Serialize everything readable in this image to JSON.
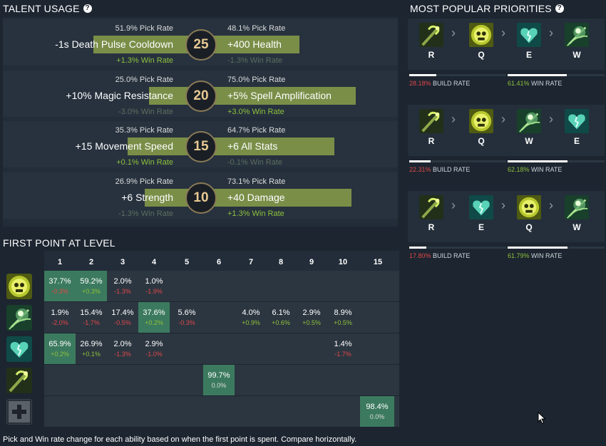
{
  "talent_usage": {
    "title": "TALENT USAGE",
    "help": "?",
    "rows": [
      {
        "level": "25",
        "left": {
          "name": "-1s Death Pulse Cooldown",
          "pick": "51.9% Pick Rate",
          "win": "+1.3% Win Rate",
          "win_sign": "pos",
          "pick_value": 51.9
        },
        "right": {
          "name": "+400 Health",
          "pick": "48.1% Pick Rate",
          "win": "-1.3% Win Rate",
          "win_sign": "neg",
          "pick_value": 48.1
        }
      },
      {
        "level": "20",
        "left": {
          "name": "+10% Magic Resistance",
          "pick": "25.0% Pick Rate",
          "win": "-3.0% Win Rate",
          "win_sign": "neg",
          "pick_value": 25.0
        },
        "right": {
          "name": "+5% Spell Amplification",
          "pick": "75.0% Pick Rate",
          "win": "+3.0% Win Rate",
          "win_sign": "pos",
          "pick_value": 75.0
        }
      },
      {
        "level": "15",
        "left": {
          "name": "+15 Movement Speed",
          "pick": "35.3% Pick Rate",
          "win": "+0.1% Win Rate",
          "win_sign": "pos",
          "pick_value": 35.3
        },
        "right": {
          "name": "+6 All Stats",
          "pick": "64.7% Pick Rate",
          "win": "-0.1% Win Rate",
          "win_sign": "neg",
          "pick_value": 64.7
        }
      },
      {
        "level": "10",
        "left": {
          "name": "+6 Strength",
          "pick": "26.9% Pick Rate",
          "win": "-1.3% Win Rate",
          "win_sign": "neg",
          "pick_value": 26.9
        },
        "right": {
          "name": "+40 Damage",
          "pick": "73.1% Pick Rate",
          "win": "+1.3% Win Rate",
          "win_sign": "pos",
          "pick_value": 73.1
        }
      }
    ]
  },
  "first_point": {
    "title": "FIRST POINT AT LEVEL",
    "levels": [
      "1",
      "2",
      "3",
      "4",
      "5",
      "6",
      "7",
      "8",
      "9",
      "10",
      "15"
    ],
    "abilities": [
      {
        "icon": "q-ability-icon",
        "cells": [
          {
            "pct": "37.7%",
            "chg": "-0.3%",
            "sign": "neg",
            "hl": true
          },
          {
            "pct": "59.2%",
            "chg": "+0.3%",
            "sign": "pos",
            "hl": true
          },
          {
            "pct": "2.0%",
            "chg": "-1.3%",
            "sign": "neg",
            "hl": false
          },
          {
            "pct": "1.0%",
            "chg": "-1.9%",
            "sign": "neg",
            "hl": false
          },
          null,
          null,
          null,
          null,
          null,
          null,
          null
        ]
      },
      {
        "icon": "w-ability-icon",
        "cells": [
          {
            "pct": "1.9%",
            "chg": "-2.0%",
            "sign": "neg",
            "hl": false
          },
          {
            "pct": "15.4%",
            "chg": "-1.7%",
            "sign": "neg",
            "hl": false
          },
          {
            "pct": "17.4%",
            "chg": "-0.5%",
            "sign": "neg",
            "hl": false
          },
          {
            "pct": "37.6%",
            "chg": "+0.2%",
            "sign": "pos",
            "hl": true
          },
          {
            "pct": "5.6%",
            "chg": "-0.3%",
            "sign": "neg",
            "hl": false
          },
          null,
          {
            "pct": "4.0%",
            "chg": "+0.9%",
            "sign": "pos",
            "hl": false
          },
          {
            "pct": "6.1%",
            "chg": "+0.6%",
            "sign": "pos",
            "hl": false
          },
          {
            "pct": "2.9%",
            "chg": "+0.5%",
            "sign": "pos",
            "hl": false
          },
          {
            "pct": "8.9%",
            "chg": "+0.5%",
            "sign": "pos",
            "hl": false
          },
          null
        ]
      },
      {
        "icon": "e-ability-icon",
        "cells": [
          {
            "pct": "65.9%",
            "chg": "+0.2%",
            "sign": "pos",
            "hl": true
          },
          {
            "pct": "26.9%",
            "chg": "+0.1%",
            "sign": "pos",
            "hl": false
          },
          {
            "pct": "2.0%",
            "chg": "-1.3%",
            "sign": "neg",
            "hl": false
          },
          {
            "pct": "2.9%",
            "chg": "-1.0%",
            "sign": "neg",
            "hl": false
          },
          null,
          null,
          null,
          null,
          null,
          {
            "pct": "1.4%",
            "chg": "-1.7%",
            "sign": "neg",
            "hl": false
          },
          null
        ]
      },
      {
        "icon": "r-ability-icon",
        "cells": [
          null,
          null,
          null,
          null,
          null,
          {
            "pct": "99.7%",
            "chg": "0.0%",
            "sign": "zero",
            "hl": true
          },
          null,
          null,
          null,
          null,
          null
        ]
      },
      {
        "icon": "talent-plus-icon",
        "cells": [
          null,
          null,
          null,
          null,
          null,
          null,
          null,
          null,
          null,
          null,
          {
            "pct": "98.4%",
            "chg": "0.0%",
            "sign": "zero",
            "hl": true
          }
        ]
      }
    ],
    "footnote": "Pick and Win rate change for each ability based on when the first point is spent. Compare horizontally."
  },
  "priorities": {
    "title": "MOST POPULAR PRIORITIES",
    "help": "?",
    "cards": [
      {
        "order": [
          {
            "key": "R",
            "icon": "r-ability-icon"
          },
          {
            "key": "Q",
            "icon": "q-ability-icon"
          },
          {
            "key": "E",
            "icon": "e-ability-icon"
          },
          {
            "key": "W",
            "icon": "w-ability-icon"
          }
        ],
        "build_rate": "28.18%",
        "build_label": "BUILD RATE",
        "win_rate": "61.41%",
        "win_label": "WIN RATE",
        "build_fill": 0.28,
        "win_fill": 0.61
      },
      {
        "order": [
          {
            "key": "R",
            "icon": "r-ability-icon"
          },
          {
            "key": "Q",
            "icon": "q-ability-icon"
          },
          {
            "key": "W",
            "icon": "w-ability-icon"
          },
          {
            "key": "E",
            "icon": "e-ability-icon"
          }
        ],
        "build_rate": "22.31%",
        "build_label": "BUILD RATE",
        "win_rate": "62.18%",
        "win_label": "WIN RATE",
        "build_fill": 0.22,
        "win_fill": 0.62
      },
      {
        "order": [
          {
            "key": "R",
            "icon": "r-ability-icon"
          },
          {
            "key": "E",
            "icon": "e-ability-icon"
          },
          {
            "key": "Q",
            "icon": "q-ability-icon"
          },
          {
            "key": "W",
            "icon": "w-ability-icon"
          }
        ],
        "build_rate": "17.80%",
        "build_label": "BUILD RATE",
        "win_rate": "61.79%",
        "win_label": "WIN RATE",
        "build_fill": 0.18,
        "win_fill": 0.62
      }
    ]
  },
  "colors": {
    "bar": "#7a8e48",
    "highlight": "#3c7a5f",
    "positive": "#8ec13b",
    "negative": "#e0484a"
  }
}
